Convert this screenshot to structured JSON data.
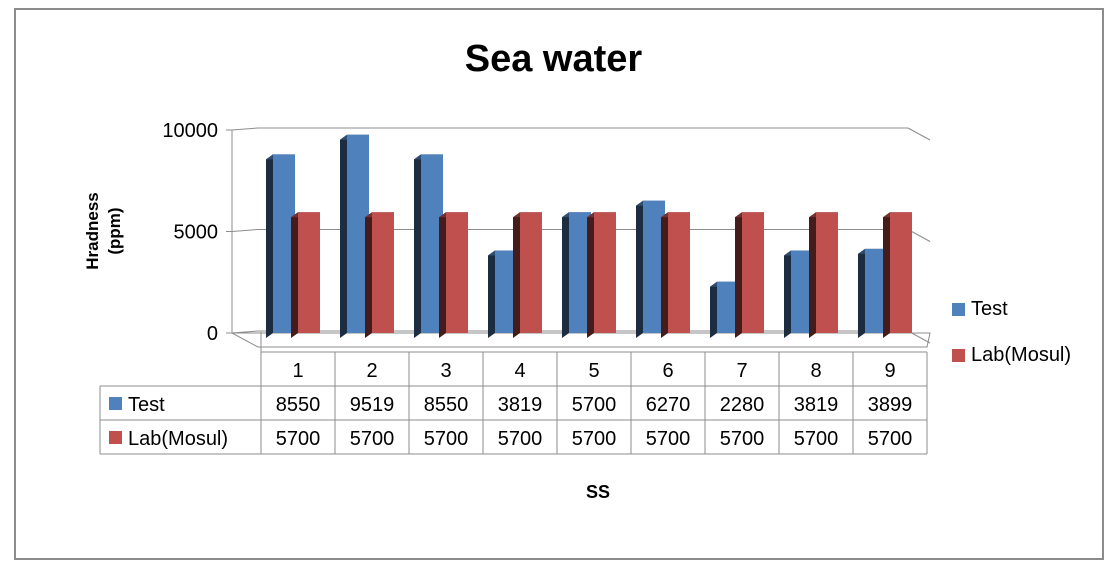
{
  "chart_data": {
    "type": "bar",
    "title": "Sea water",
    "xlabel": "SS",
    "ylabel_lines": [
      "Hradness",
      "(ppm)"
    ],
    "categories": [
      "1",
      "2",
      "3",
      "4",
      "5",
      "6",
      "7",
      "8",
      "9"
    ],
    "series": [
      {
        "name": "Test",
        "values": [
          8550,
          9519,
          8550,
          3819,
          5700,
          6270,
          2280,
          3819,
          3899
        ],
        "color": "#4f81bd"
      },
      {
        "name": "Lab(Mosul)",
        "values": [
          5700,
          5700,
          5700,
          5700,
          5700,
          5700,
          5700,
          5700,
          5700
        ],
        "color": "#c0504d"
      }
    ],
    "yticks": [
      "0",
      "5000",
      "10000"
    ],
    "ylim": [
      0,
      10000
    ],
    "grid": true,
    "legend": "right",
    "data_table": true
  }
}
